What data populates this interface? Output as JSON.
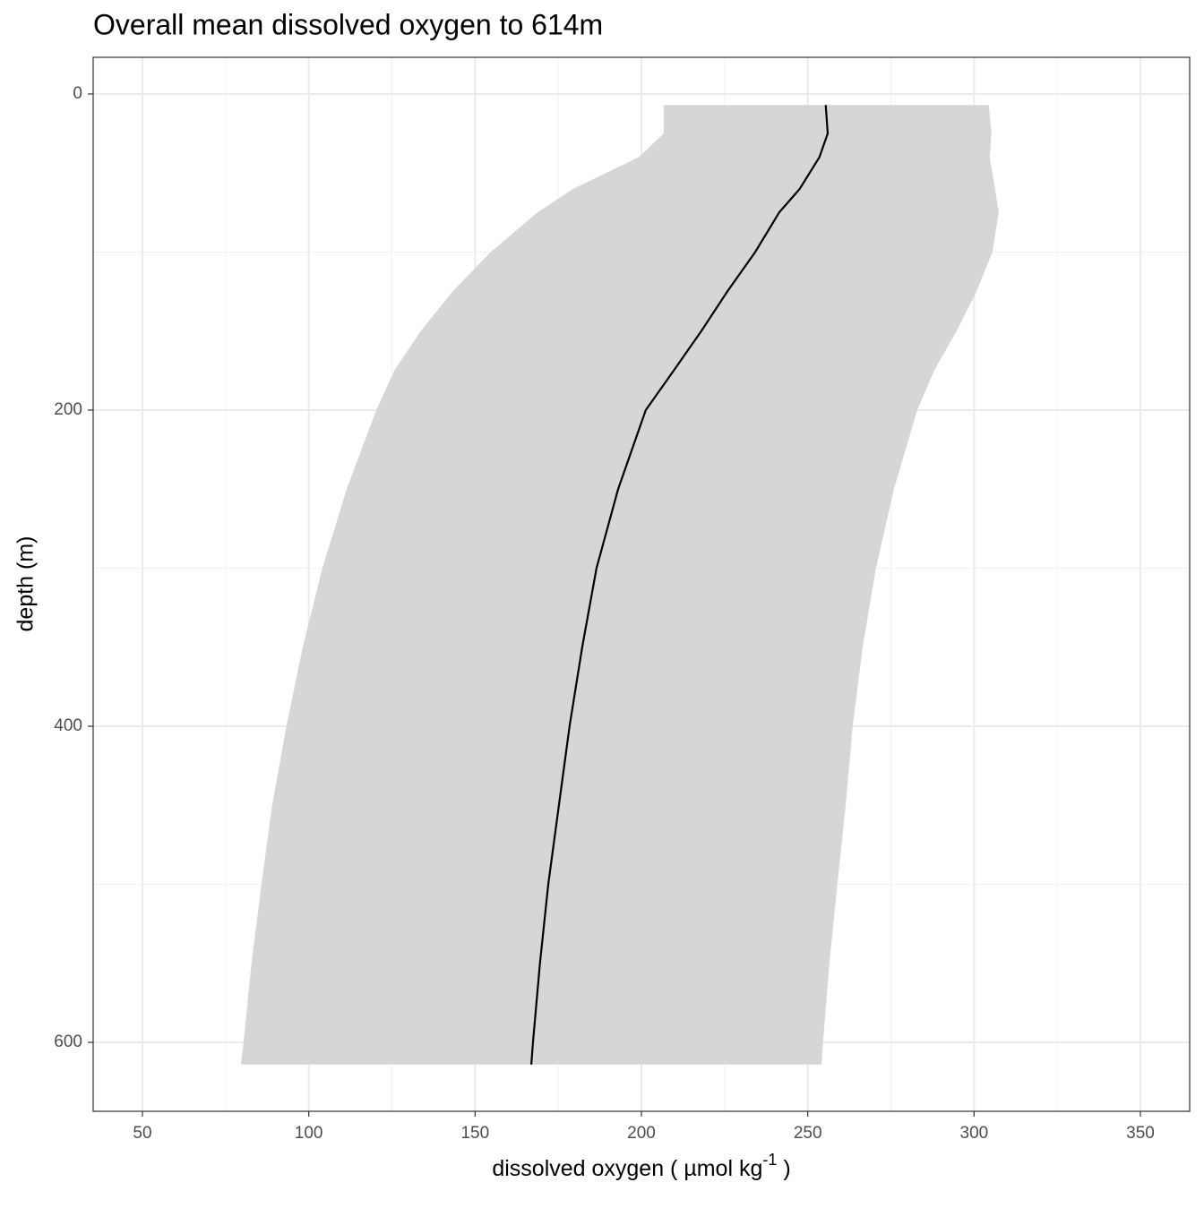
{
  "chart_data": {
    "type": "line",
    "title": "Overall mean dissolved oxygen to 614m",
    "xlabel": "dissolved oxygen ( µmol kg",
    "xlabel_sup": "-1",
    "xlabel_end": " )",
    "ylabel": "depth (m)",
    "depths": [
      7,
      25,
      40,
      60,
      75,
      100,
      125,
      150,
      175,
      200,
      250,
      300,
      350,
      400,
      450,
      500,
      550,
      600,
      614
    ],
    "values": [
      255.4,
      256,
      253.5,
      247.6,
      241.4,
      234.2,
      225.8,
      218,
      209.7,
      201.3,
      193,
      186.5,
      182.2,
      178.4,
      175.2,
      172,
      169.5,
      167.4,
      166.9
    ],
    "lower": [
      206.7,
      206.7,
      199.2,
      179.5,
      168.7,
      154.7,
      143.2,
      133.7,
      125.7,
      120.3,
      111.4,
      104.1,
      98.2,
      93.3,
      89,
      85.8,
      82.8,
      80.4,
      79.6
    ],
    "upper": [
      304.4,
      305.2,
      304.7,
      306.3,
      307.4,
      305.5,
      300.7,
      294.7,
      288,
      282.9,
      275.9,
      270.5,
      266.5,
      263.5,
      261.4,
      258.9,
      256.5,
      254.6,
      254.1
    ],
    "color": "#000000",
    "ribbon_color": "#d6d6d6",
    "xlim": [
      35.2,
      364.8
    ],
    "xticks": [
      50,
      100,
      150,
      200,
      250,
      300,
      350
    ],
    "xminorticks": [
      75,
      125,
      175,
      225,
      275,
      325
    ],
    "ylim": [
      -23.2,
      643.6
    ],
    "yticks": [
      0,
      200,
      400,
      600
    ],
    "yminorticks": [
      100,
      300,
      500
    ],
    "y_reversed": true,
    "grid": true
  }
}
